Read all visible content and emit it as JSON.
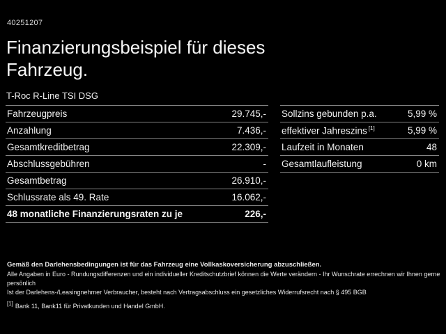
{
  "page": {
    "id_number": "40251207",
    "title_line1": "Finanzierungsbeispiel für dieses",
    "title_line2": "Fahrzeug.",
    "vehicle_name": "T-Roc R-Line TSI DSG"
  },
  "finance_table_left": {
    "rows": [
      {
        "label": "Fahrzeugpreis",
        "value": "29.745,-"
      },
      {
        "label": "Anzahlung",
        "value": "7.436,-"
      },
      {
        "label": "Gesamtkreditbetrag",
        "value": "22.309,-"
      },
      {
        "label": "Abschlussgebühren",
        "value": "-"
      },
      {
        "label": "Gesamtbetrag",
        "value": "26.910,-"
      },
      {
        "label": "Schlussrate als 49. Rate",
        "value": "16.062,-"
      },
      {
        "label": "48 monatliche Finanzierungsraten zu je",
        "value": "226,-"
      }
    ]
  },
  "finance_table_right": {
    "rows": [
      {
        "label": "Sollzins gebunden p.a.",
        "sup": "",
        "value": "5,99 %"
      },
      {
        "label": "effektiver Jahreszins",
        "sup": "[1]",
        "value": "5,99 %"
      },
      {
        "label": "Laufzeit in Monaten",
        "sup": "",
        "value": "48"
      },
      {
        "label": "Gesamtlaufleistung",
        "sup": "",
        "value": "0 km"
      }
    ]
  },
  "footer": {
    "line1": "Gemäß den Darlehensbedingungen ist für das Fahrzeug eine Vollkaskoversicherung abzuschließen.",
    "line2": "Alle Angaben in Euro - Rundungsdifferenzen und ein individueller Kreditschutzbrief können die Werte verändern - Ihr Wunschrate errechnen wir Ihnen gerne persönlich",
    "line3": "Ist der Darlehens-/Leasingnehmer Verbraucher, besteht nach Vertragsabschluss ein gesetzliches Widerrufsrecht nach § 495 BGB",
    "footnote_marker": "[1]",
    "footnote_text": "Bank 11, Bank11 für Privatkunden und Handel GmbH."
  },
  "colors": {
    "background": "#000000",
    "text": "#f2f2f2",
    "divider": "#848484"
  }
}
